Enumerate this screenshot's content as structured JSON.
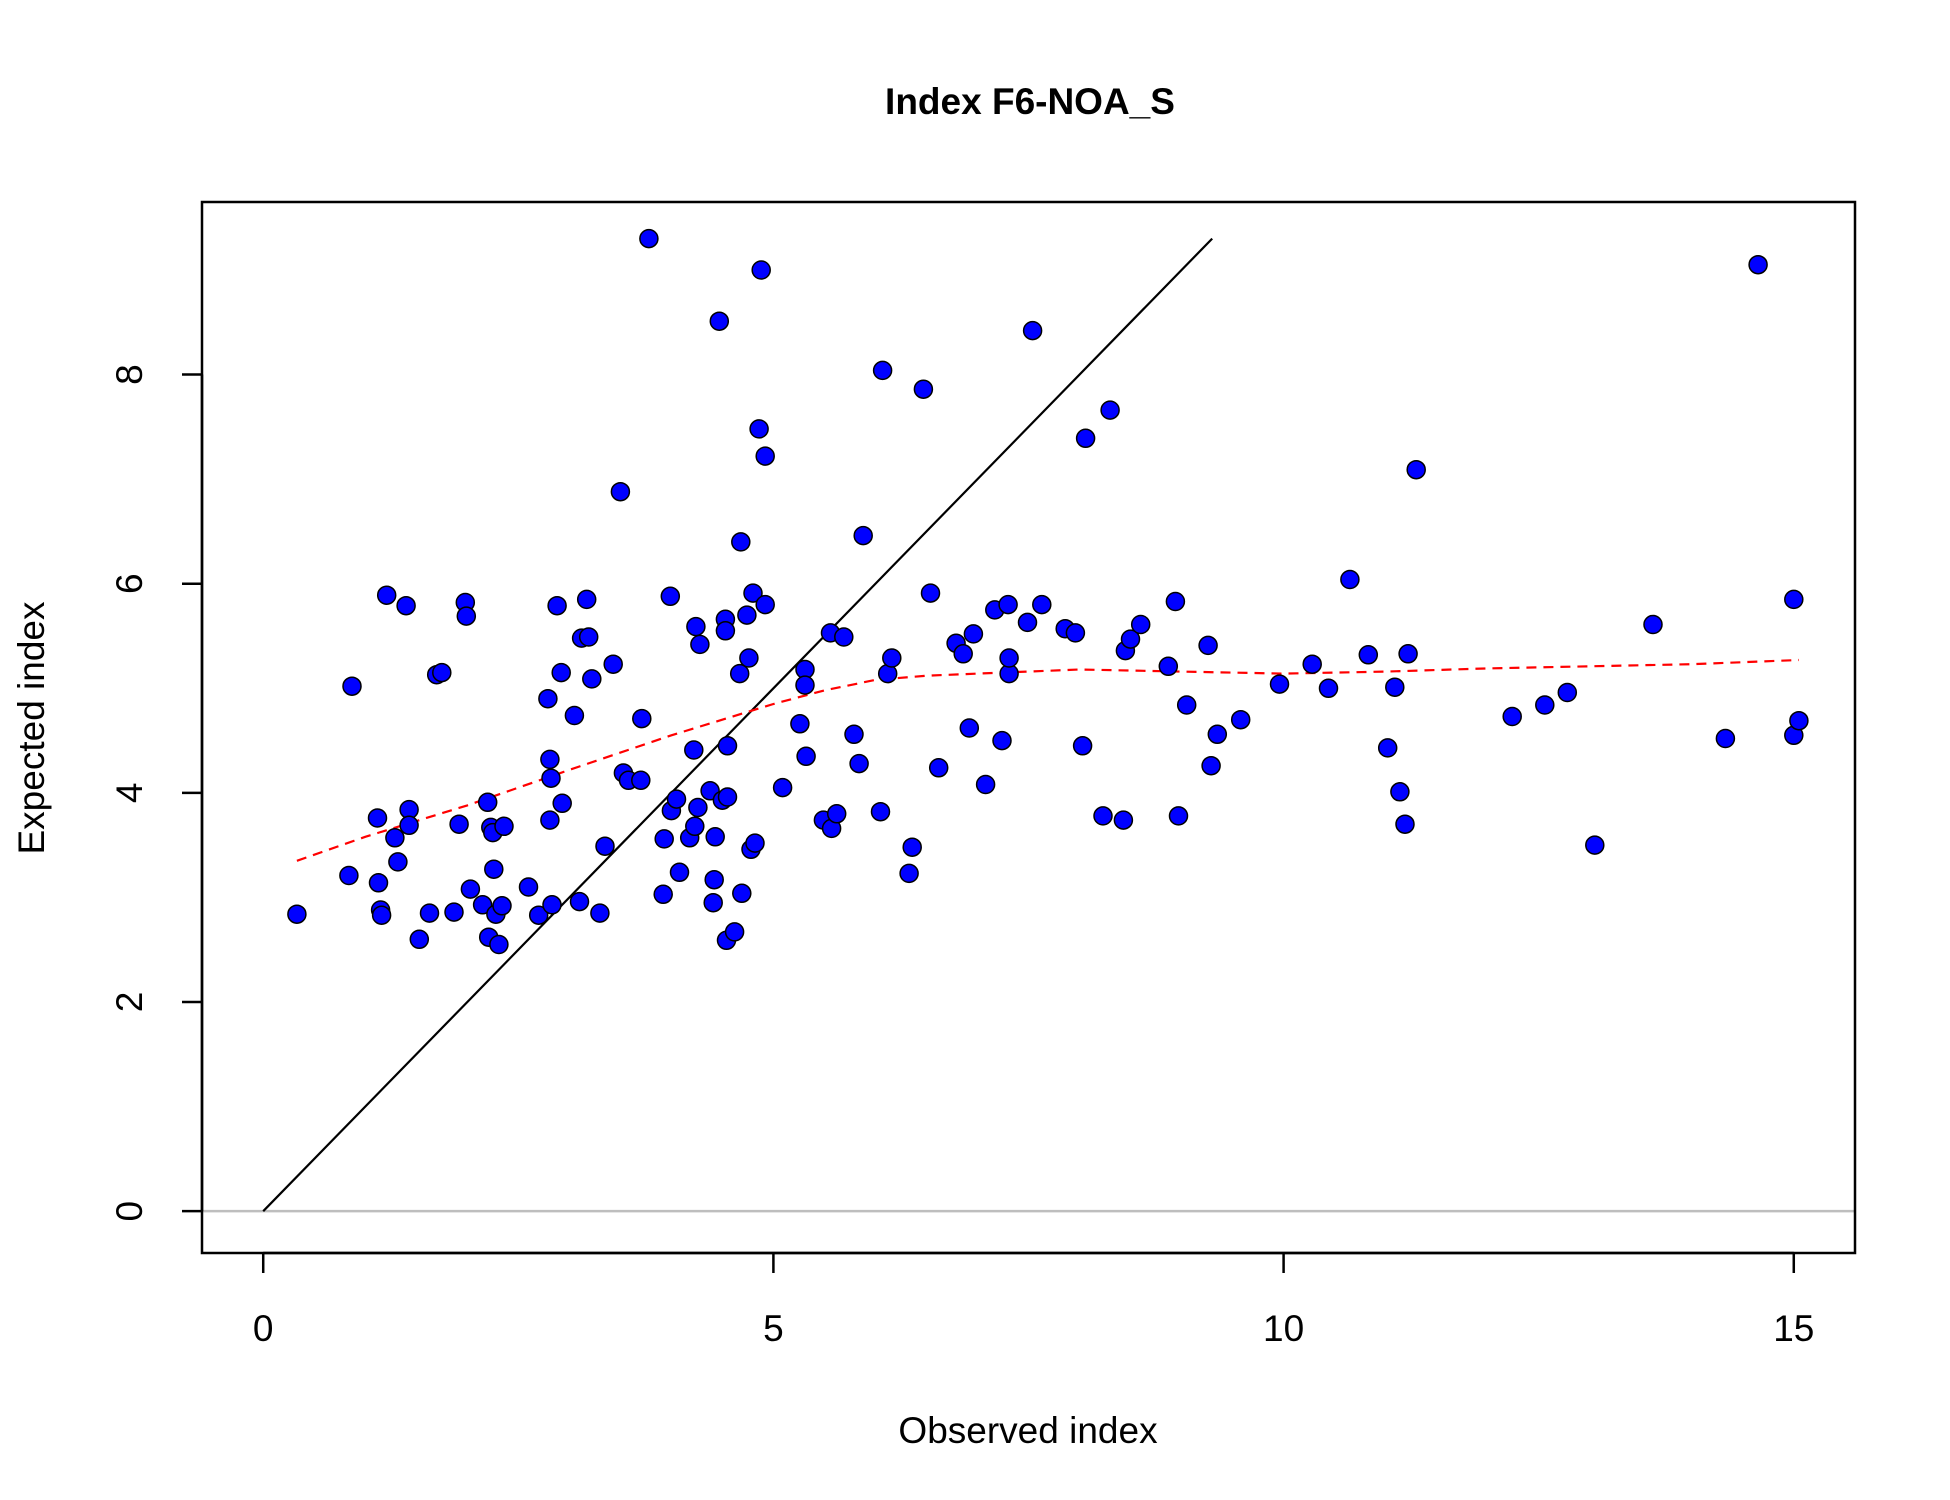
{
  "chart_data": {
    "type": "scatter",
    "title": "Index F6-NOA_S",
    "xlabel": "Observed index",
    "ylabel": "Expected index",
    "xlim": [
      -0.6,
      15.6
    ],
    "ylim": [
      -0.4,
      9.65
    ],
    "xticks": [
      0,
      5,
      10,
      15
    ],
    "yticks": [
      0,
      2,
      4,
      6,
      8
    ],
    "grid": false,
    "legend": "none",
    "colors": {
      "points": "#0000ff",
      "point_outline": "#000000",
      "identity_line": "#000000",
      "smooth_line": "#ff0000",
      "zero_line": "#bebebe"
    },
    "series": [
      {
        "type": "scatter",
        "points": [
          [
            0.33,
            2.84
          ],
          [
            0.84,
            3.21
          ],
          [
            0.87,
            5.02
          ],
          [
            1.12,
            3.76
          ],
          [
            1.13,
            3.14
          ],
          [
            1.15,
            2.88
          ],
          [
            1.16,
            2.83
          ],
          [
            1.21,
            5.89
          ],
          [
            1.29,
            3.57
          ],
          [
            1.32,
            3.34
          ],
          [
            1.4,
            5.79
          ],
          [
            1.43,
            3.84
          ],
          [
            1.43,
            3.69
          ],
          [
            1.53,
            2.6
          ],
          [
            1.63,
            2.85
          ],
          [
            1.7,
            5.13
          ],
          [
            1.75,
            5.15
          ],
          [
            1.87,
            2.86
          ],
          [
            1.92,
            3.7
          ],
          [
            1.98,
            5.82
          ],
          [
            1.99,
            5.69
          ],
          [
            2.03,
            3.08
          ],
          [
            2.15,
            2.93
          ],
          [
            2.2,
            3.91
          ],
          [
            2.21,
            2.62
          ],
          [
            2.23,
            3.67
          ],
          [
            2.25,
            3.62
          ],
          [
            2.26,
            3.27
          ],
          [
            2.28,
            2.84
          ],
          [
            2.31,
            2.55
          ],
          [
            2.34,
            2.92
          ],
          [
            2.36,
            3.68
          ],
          [
            2.6,
            3.1
          ],
          [
            2.7,
            2.83
          ],
          [
            2.79,
            4.9
          ],
          [
            2.81,
            4.32
          ],
          [
            2.81,
            3.74
          ],
          [
            2.82,
            4.14
          ],
          [
            2.83,
            2.93
          ],
          [
            2.88,
            5.79
          ],
          [
            2.92,
            5.15
          ],
          [
            2.93,
            3.9
          ],
          [
            3.05,
            4.74
          ],
          [
            3.1,
            2.96
          ],
          [
            3.12,
            5.48
          ],
          [
            3.17,
            5.85
          ],
          [
            3.19,
            5.49
          ],
          [
            3.22,
            5.09
          ],
          [
            3.3,
            2.85
          ],
          [
            3.35,
            3.49
          ],
          [
            3.43,
            5.23
          ],
          [
            3.5,
            6.88
          ],
          [
            3.53,
            4.19
          ],
          [
            3.58,
            4.12
          ],
          [
            3.7,
            4.12
          ],
          [
            3.71,
            4.71
          ],
          [
            3.78,
            9.3
          ],
          [
            3.92,
            3.03
          ],
          [
            3.93,
            3.56
          ],
          [
            3.99,
            5.88
          ],
          [
            4.0,
            3.83
          ],
          [
            4.05,
            3.94
          ],
          [
            4.08,
            3.24
          ],
          [
            4.18,
            3.57
          ],
          [
            4.22,
            4.41
          ],
          [
            4.23,
            3.68
          ],
          [
            4.24,
            5.59
          ],
          [
            4.26,
            3.86
          ],
          [
            4.28,
            5.42
          ],
          [
            4.38,
            4.02
          ],
          [
            4.41,
            2.95
          ],
          [
            4.42,
            3.17
          ],
          [
            4.43,
            3.58
          ],
          [
            4.47,
            8.51
          ],
          [
            4.5,
            3.93
          ],
          [
            4.53,
            5.66
          ],
          [
            4.53,
            5.55
          ],
          [
            4.54,
            2.59
          ],
          [
            4.55,
            4.45
          ],
          [
            4.55,
            3.96
          ],
          [
            4.62,
            2.67
          ],
          [
            4.67,
            5.14
          ],
          [
            4.68,
            6.4
          ],
          [
            4.69,
            3.04
          ],
          [
            4.74,
            5.7
          ],
          [
            4.76,
            5.29
          ],
          [
            4.78,
            3.46
          ],
          [
            4.8,
            5.91
          ],
          [
            4.82,
            3.52
          ],
          [
            4.86,
            7.48
          ],
          [
            4.88,
            9.0
          ],
          [
            4.92,
            5.8
          ],
          [
            4.92,
            7.22
          ],
          [
            5.09,
            4.05
          ],
          [
            5.26,
            4.66
          ],
          [
            5.31,
            5.18
          ],
          [
            5.31,
            5.03
          ],
          [
            5.32,
            4.35
          ],
          [
            5.49,
            3.74
          ],
          [
            5.56,
            5.53
          ],
          [
            5.57,
            3.66
          ],
          [
            5.62,
            3.8
          ],
          [
            5.69,
            5.49
          ],
          [
            5.79,
            4.56
          ],
          [
            5.84,
            4.28
          ],
          [
            5.88,
            6.46
          ],
          [
            6.05,
            3.82
          ],
          [
            6.07,
            8.04
          ],
          [
            6.12,
            5.14
          ],
          [
            6.16,
            5.29
          ],
          [
            6.33,
            3.23
          ],
          [
            6.36,
            3.48
          ],
          [
            6.47,
            7.86
          ],
          [
            6.54,
            5.91
          ],
          [
            6.62,
            4.24
          ],
          [
            6.79,
            5.43
          ],
          [
            6.86,
            5.33
          ],
          [
            6.92,
            4.62
          ],
          [
            6.96,
            5.52
          ],
          [
            7.08,
            4.08
          ],
          [
            7.17,
            5.75
          ],
          [
            7.24,
            4.5
          ],
          [
            7.3,
            5.8
          ],
          [
            7.31,
            5.14
          ],
          [
            7.31,
            5.29
          ],
          [
            7.49,
            5.63
          ],
          [
            7.54,
            8.42
          ],
          [
            7.63,
            5.8
          ],
          [
            7.86,
            5.57
          ],
          [
            7.96,
            5.53
          ],
          [
            8.03,
            4.45
          ],
          [
            8.06,
            7.39
          ],
          [
            8.23,
            3.78
          ],
          [
            8.3,
            7.66
          ],
          [
            8.43,
            3.74
          ],
          [
            8.45,
            5.36
          ],
          [
            8.5,
            5.47
          ],
          [
            8.6,
            5.61
          ],
          [
            8.87,
            5.21
          ],
          [
            8.94,
            5.83
          ],
          [
            8.97,
            3.78
          ],
          [
            9.05,
            4.84
          ],
          [
            9.26,
            5.41
          ],
          [
            9.29,
            4.26
          ],
          [
            9.35,
            4.56
          ],
          [
            9.58,
            4.7
          ],
          [
            9.96,
            5.04
          ],
          [
            10.28,
            5.23
          ],
          [
            10.44,
            5.0
          ],
          [
            10.65,
            6.04
          ],
          [
            10.83,
            5.32
          ],
          [
            11.02,
            4.43
          ],
          [
            11.09,
            5.01
          ],
          [
            11.14,
            4.01
          ],
          [
            11.19,
            3.7
          ],
          [
            11.22,
            5.33
          ],
          [
            11.3,
            7.09
          ],
          [
            12.24,
            4.73
          ],
          [
            12.56,
            4.84
          ],
          [
            12.78,
            4.96
          ],
          [
            13.05,
            3.5
          ],
          [
            13.62,
            5.61
          ],
          [
            14.33,
            4.52
          ],
          [
            14.65,
            9.05
          ],
          [
            15.0,
            5.85
          ],
          [
            15.0,
            4.55
          ],
          [
            15.05,
            4.69
          ]
        ]
      },
      {
        "type": "line",
        "style": "solid",
        "points": [
          [
            0,
            0
          ],
          [
            9.3,
            9.3
          ]
        ]
      },
      {
        "type": "line",
        "style": "dashed",
        "points": [
          [
            0.33,
            3.35
          ],
          [
            1.0,
            3.58
          ],
          [
            2.0,
            3.88
          ],
          [
            3.0,
            4.22
          ],
          [
            4.0,
            4.55
          ],
          [
            5.0,
            4.85
          ],
          [
            5.5,
            4.98
          ],
          [
            6.0,
            5.08
          ],
          [
            6.5,
            5.12
          ],
          [
            7.0,
            5.14
          ],
          [
            8.0,
            5.18
          ],
          [
            9.0,
            5.16
          ],
          [
            10.0,
            5.14
          ],
          [
            11.0,
            5.16
          ],
          [
            12.0,
            5.19
          ],
          [
            13.0,
            5.21
          ],
          [
            14.0,
            5.23
          ],
          [
            15.05,
            5.27
          ]
        ]
      },
      {
        "type": "hline",
        "y": 0
      }
    ]
  }
}
